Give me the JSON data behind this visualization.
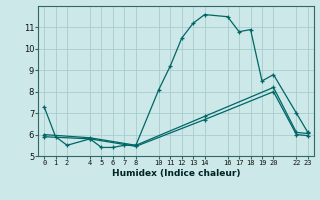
{
  "xlabel": "Humidex (Indice chaleur)",
  "background_color": "#cce8e8",
  "grid_color": "#aacccc",
  "line_color": "#006666",
  "xlim": [
    -0.5,
    23.5
  ],
  "ylim": [
    5,
    12
  ],
  "yticks": [
    5,
    6,
    7,
    8,
    9,
    10,
    11
  ],
  "xtick_positions": [
    0,
    1,
    2,
    4,
    5,
    6,
    7,
    8,
    10,
    11,
    12,
    13,
    14,
    16,
    17,
    18,
    19,
    20,
    22,
    23
  ],
  "xtick_labels": [
    "0",
    "1",
    "2",
    "4",
    "5",
    "6",
    "7",
    "8",
    "10",
    "11",
    "12",
    "13",
    "14",
    "16",
    "17",
    "18",
    "19",
    "20",
    "22",
    "23"
  ],
  "series": [
    {
      "x": [
        0,
        1,
        2,
        4,
        5,
        6,
        7,
        8,
        10,
        11,
        12,
        13,
        14,
        16,
        17,
        18,
        19,
        20,
        22,
        23
      ],
      "y": [
        7.3,
        5.9,
        5.5,
        5.8,
        5.4,
        5.4,
        5.5,
        5.5,
        8.1,
        9.2,
        10.5,
        11.2,
        11.6,
        11.5,
        10.8,
        10.9,
        8.5,
        8.8,
        7.0,
        6.1
      ]
    },
    {
      "x": [
        0,
        4,
        8,
        14,
        20,
        22,
        23
      ],
      "y": [
        6.0,
        5.85,
        5.5,
        6.85,
        8.2,
        6.1,
        6.05
      ]
    },
    {
      "x": [
        0,
        4,
        8,
        14,
        20,
        22,
        23
      ],
      "y": [
        5.9,
        5.8,
        5.45,
        6.7,
        8.0,
        6.0,
        5.95
      ]
    }
  ]
}
